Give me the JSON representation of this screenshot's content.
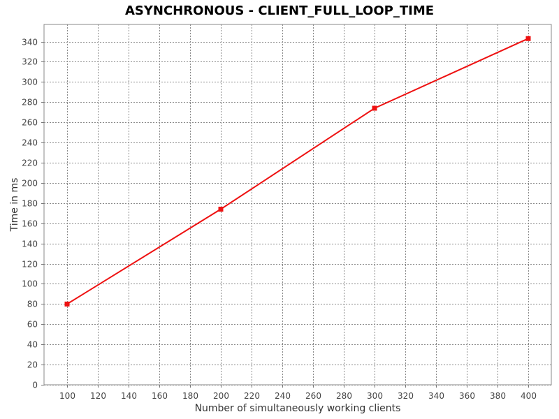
{
  "chart_data": {
    "type": "line",
    "title": "ASYNCHRONOUS - CLIENT_FULL_LOOP_TIME",
    "xlabel": "Number of simultaneously working clients",
    "ylabel": "Time in ms",
    "xlim": [
      85,
      415
    ],
    "ylim": [
      0,
      357
    ],
    "x_ticks": [
      100,
      120,
      140,
      160,
      180,
      200,
      220,
      240,
      260,
      280,
      300,
      320,
      340,
      360,
      380,
      400
    ],
    "y_ticks": [
      0,
      20,
      40,
      60,
      80,
      100,
      120,
      140,
      160,
      180,
      200,
      220,
      240,
      260,
      280,
      300,
      320,
      340
    ],
    "grid": true,
    "series": [
      {
        "color": "#ee1111",
        "marker": "square",
        "x": [
          100,
          200,
          300,
          400
        ],
        "values": [
          80,
          174,
          274,
          343
        ]
      }
    ]
  }
}
